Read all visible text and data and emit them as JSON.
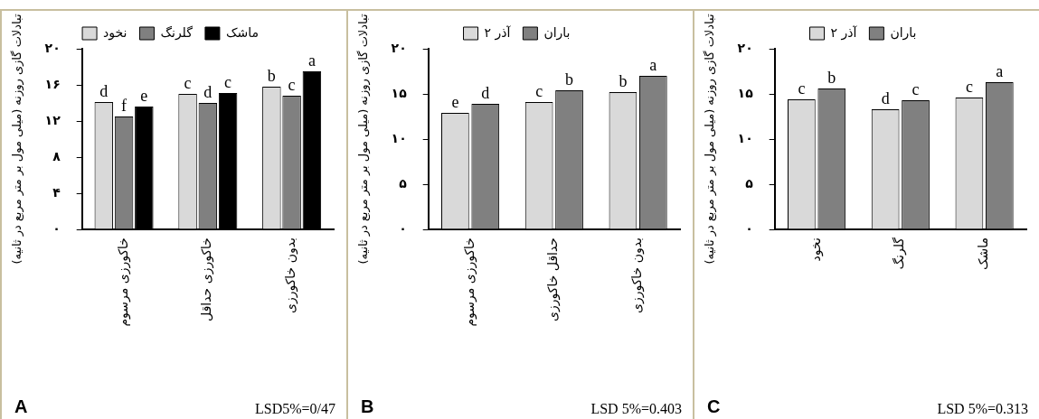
{
  "chart_data": [
    {
      "type": "bar",
      "ylabel": "تبادلات گازی روزنه (میلی مول بر متر مربع در ثانیه)",
      "categories": [
        "خاکورزی مرسوم",
        "خاکورزی حداقل",
        "بدون خاکورزی"
      ],
      "legend": "top",
      "grid": false,
      "ylim": [
        0,
        20
      ],
      "yticks": [
        {
          "value": 0,
          "label": "۰"
        },
        {
          "value": 4,
          "label": "۴"
        },
        {
          "value": 8,
          "label": "۸"
        },
        {
          "value": 12,
          "label": "۱۲"
        },
        {
          "value": 16,
          "label": "۱۶"
        },
        {
          "value": 20,
          "label": "۲۰"
        }
      ],
      "series": [
        {
          "name": "نخود",
          "color": "#d9d9d9",
          "values": [
            14.1,
            15.0,
            15.8
          ],
          "value_labels": [
            "d",
            "c",
            "b"
          ]
        },
        {
          "name": "گلرنگ",
          "color": "#808080",
          "values": [
            12.5,
            14.0,
            14.8
          ],
          "value_labels": [
            "f",
            "d",
            "c"
          ]
        },
        {
          "name": "ماشک",
          "color": "#000000",
          "values": [
            13.6,
            15.1,
            17.5
          ],
          "value_labels": [
            "e",
            "c",
            "a"
          ]
        }
      ],
      "annotations": [
        "A",
        "LSD5%=0/47"
      ]
    },
    {
      "type": "bar",
      "ylabel": "تبادلات گازی روزنه (میلی مول بر متر مربع در ثانیه)",
      "categories": [
        "خاکورزی مرسوم",
        "حداقل خاکورزی",
        "بدون خاکورزی"
      ],
      "legend": "top",
      "grid": false,
      "ylim": [
        0,
        20
      ],
      "yticks": [
        {
          "value": 0,
          "label": "۰"
        },
        {
          "value": 5,
          "label": "۵"
        },
        {
          "value": 10,
          "label": "۱۰"
        },
        {
          "value": 15,
          "label": "۱۵"
        },
        {
          "value": 20,
          "label": "۲۰"
        }
      ],
      "series": [
        {
          "name": "آذر ۲",
          "color": "#d9d9d9",
          "values": [
            12.9,
            14.1,
            15.2
          ],
          "value_labels": [
            "e",
            "c",
            "b"
          ]
        },
        {
          "name": "باران",
          "color": "#808080",
          "values": [
            13.9,
            15.4,
            17.0
          ],
          "value_labels": [
            "d",
            "b",
            "a"
          ]
        }
      ],
      "annotations": [
        "B",
        "LSD 5%=0.403"
      ]
    },
    {
      "type": "bar",
      "ylabel": "تبادلات گازی روزنه (میلی مول بر متر مربع در ثانیه)",
      "categories": [
        "نخود",
        "گلرنگ",
        "ماشک"
      ],
      "legend": "top",
      "grid": false,
      "ylim": [
        0,
        20
      ],
      "yticks": [
        {
          "value": 0,
          "label": "۰"
        },
        {
          "value": 5,
          "label": "۵"
        },
        {
          "value": 10,
          "label": "۱۰"
        },
        {
          "value": 15,
          "label": "۱۵"
        },
        {
          "value": 20,
          "label": "۲۰"
        }
      ],
      "series": [
        {
          "name": "آذر ۲",
          "color": "#d9d9d9",
          "values": [
            14.4,
            13.3,
            14.6
          ],
          "value_labels": [
            "c",
            "d",
            "c"
          ]
        },
        {
          "name": "باران",
          "color": "#808080",
          "values": [
            15.6,
            14.3,
            16.3
          ],
          "value_labels": [
            "b",
            "c",
            "a"
          ]
        }
      ],
      "annotations": [
        "C",
        "LSD 5%=0.313"
      ]
    }
  ]
}
